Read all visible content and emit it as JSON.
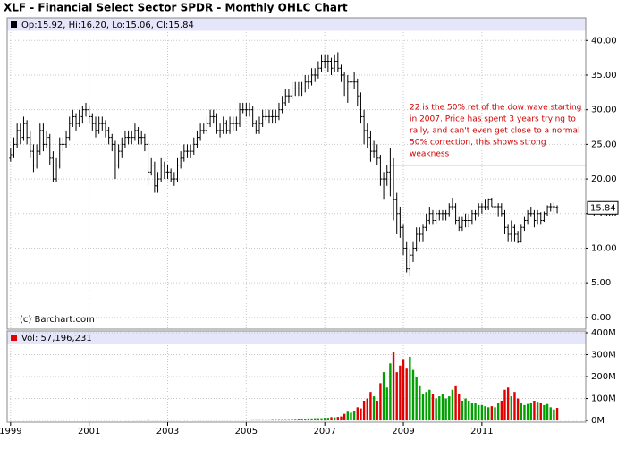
{
  "chart_data": [
    {
      "type": "ohlc",
      "title": "XLF - Financial Select Sector SPDR - Monthly OHLC Chart",
      "legend": "Op:15.92, Hi:16.20, Lo:15.06, Cl:15.84",
      "credit": "(c) Barchart.com",
      "last_label": "15.84",
      "color": "#000000",
      "grid": true,
      "ylim": [
        -1.7,
        41.2
      ],
      "yticks": [
        {
          "value": 0,
          "label": "0.00"
        },
        {
          "value": 5,
          "label": "5.00"
        },
        {
          "value": 10,
          "label": "10.00"
        },
        {
          "value": 15,
          "label": "15.00"
        },
        {
          "value": 20,
          "label": "20.00"
        },
        {
          "value": 25,
          "label": "25.00"
        },
        {
          "value": 30,
          "label": "30.00"
        },
        {
          "value": 35,
          "label": "35.00"
        },
        {
          "value": 40,
          "label": "40.00"
        }
      ],
      "annotation_line": {
        "value": 22,
        "color": "#d00000"
      },
      "annotation": [
        "22 is the 50% ret of the dow wave starting",
        "in 2007.  Price has spent 3 years trying to",
        "rally, and can't even get close to a normal",
        "50% correction, this shows strong",
        "weakness"
      ],
      "categories": [
        "1999",
        null,
        null,
        null,
        null,
        null,
        null,
        null,
        null,
        null,
        null,
        null,
        null,
        null,
        null,
        null,
        null,
        null,
        null,
        null,
        null,
        null,
        null,
        null,
        "2001",
        null,
        null,
        null,
        null,
        null,
        null,
        null,
        null,
        null,
        null,
        null,
        null,
        null,
        null,
        null,
        null,
        null,
        null,
        null,
        null,
        null,
        null,
        null,
        "2003",
        null,
        null,
        null,
        null,
        null,
        null,
        null,
        null,
        null,
        null,
        null,
        null,
        null,
        null,
        null,
        null,
        null,
        null,
        null,
        null,
        null,
        null,
        null,
        "2005",
        null,
        null,
        null,
        null,
        null,
        null,
        null,
        null,
        null,
        null,
        null,
        null,
        null,
        null,
        null,
        null,
        null,
        null,
        null,
        null,
        null,
        null,
        null,
        "2007",
        null,
        null,
        null,
        null,
        null,
        null,
        null,
        null,
        null,
        null,
        null,
        null,
        null,
        null,
        null,
        null,
        null,
        null,
        null,
        null,
        null,
        null,
        null,
        "2009",
        null,
        null,
        null,
        null,
        null,
        null,
        null,
        null,
        null,
        null,
        null,
        null,
        null,
        null,
        null,
        null,
        null,
        null,
        null,
        null,
        null,
        null,
        null,
        "2011",
        null,
        null,
        null,
        null,
        null,
        null,
        null,
        null,
        null,
        null,
        null,
        null,
        null,
        null,
        null,
        null,
        null,
        null,
        null,
        null,
        null,
        null,
        null
      ],
      "ohlc": [
        [
          23,
          24.5,
          22.5,
          23.5
        ],
        [
          23.5,
          26,
          23,
          25
        ],
        [
          25,
          28,
          24.5,
          27
        ],
        [
          27,
          28,
          25,
          26
        ],
        [
          26,
          29,
          25.5,
          28
        ],
        [
          28,
          28.5,
          25,
          26
        ],
        [
          26,
          27,
          23,
          24
        ],
        [
          24,
          25,
          21,
          22
        ],
        [
          22,
          25,
          21.5,
          24
        ],
        [
          24,
          28,
          23.5,
          27
        ],
        [
          27,
          28,
          24,
          25
        ],
        [
          25,
          27,
          24.5,
          26
        ],
        [
          26,
          26.5,
          22,
          23
        ],
        [
          23,
          24,
          19.5,
          20
        ],
        [
          20,
          23,
          19.5,
          22
        ],
        [
          22,
          26,
          21.5,
          25
        ],
        [
          25,
          26,
          24,
          25
        ],
        [
          25,
          27,
          24.5,
          26
        ],
        [
          26,
          29,
          25.5,
          28
        ],
        [
          28,
          30,
          27.5,
          29
        ],
        [
          29,
          29.5,
          27,
          28
        ],
        [
          28,
          30,
          27.5,
          29
        ],
        [
          29,
          30.5,
          28,
          30
        ],
        [
          30,
          31,
          29,
          30
        ],
        [
          30,
          30.5,
          28,
          29
        ],
        [
          29,
          29.5,
          27,
          28
        ],
        [
          28,
          29,
          26,
          27
        ],
        [
          27,
          29,
          26.5,
          28
        ],
        [
          28,
          29,
          27,
          28
        ],
        [
          28,
          28.5,
          26,
          27
        ],
        [
          27,
          27.5,
          25,
          26
        ],
        [
          26,
          26.5,
          24,
          25
        ],
        [
          25,
          25.5,
          20,
          22
        ],
        [
          22,
          25,
          21.5,
          24
        ],
        [
          24,
          26,
          23,
          25
        ],
        [
          25,
          27,
          24.5,
          26
        ],
        [
          26,
          27,
          25,
          26
        ],
        [
          26,
          27,
          25,
          26
        ],
        [
          26,
          28,
          25.5,
          27
        ],
        [
          27,
          27.5,
          25,
          26
        ],
        [
          26,
          27,
          25,
          26
        ],
        [
          26,
          26.5,
          24,
          25
        ],
        [
          25,
          25.5,
          19,
          21
        ],
        [
          21,
          23,
          20.5,
          22
        ],
        [
          22,
          22.5,
          18,
          19
        ],
        [
          19,
          21,
          18,
          20
        ],
        [
          20,
          23,
          19.5,
          22
        ],
        [
          22,
          22.5,
          20,
          21
        ],
        [
          21,
          22,
          20,
          21
        ],
        [
          21,
          21.5,
          19.5,
          20
        ],
        [
          20,
          21,
          19,
          20
        ],
        [
          20,
          23,
          19.5,
          22
        ],
        [
          22,
          24,
          21.5,
          23
        ],
        [
          23,
          25,
          22.5,
          24
        ],
        [
          24,
          25,
          23,
          24
        ],
        [
          24,
          25,
          23,
          24
        ],
        [
          24,
          26,
          23.5,
          25
        ],
        [
          25,
          27,
          24.5,
          26
        ],
        [
          26,
          28,
          25.5,
          27
        ],
        [
          27,
          28,
          26.5,
          27
        ],
        [
          27,
          29,
          26.5,
          28
        ],
        [
          28,
          30,
          27.5,
          29
        ],
        [
          29,
          30,
          28,
          29
        ],
        [
          29,
          29.5,
          26.5,
          27
        ],
        [
          27,
          28,
          26,
          27
        ],
        [
          27,
          29,
          26.5,
          28
        ],
        [
          28,
          28.5,
          26.5,
          27
        ],
        [
          27,
          29,
          26.5,
          28
        ],
        [
          28,
          29,
          27,
          28
        ],
        [
          28,
          29,
          27,
          28
        ],
        [
          28,
          31,
          27.5,
          30
        ],
        [
          30,
          31,
          29.5,
          30
        ],
        [
          30,
          31,
          29,
          30
        ],
        [
          30,
          31,
          29,
          30
        ],
        [
          30,
          30.5,
          27.5,
          28
        ],
        [
          28,
          28.5,
          26.5,
          27
        ],
        [
          27,
          29,
          26.5,
          28
        ],
        [
          28,
          30,
          27.5,
          29
        ],
        [
          29,
          30,
          28.5,
          29
        ],
        [
          29,
          30,
          28,
          29
        ],
        [
          29,
          30,
          28,
          29
        ],
        [
          29,
          30,
          28,
          29
        ],
        [
          29,
          31,
          28.5,
          30
        ],
        [
          30,
          32,
          29.5,
          31
        ],
        [
          31,
          33,
          30.5,
          32
        ],
        [
          32,
          33,
          31,
          32
        ],
        [
          32,
          34,
          31.5,
          33
        ],
        [
          33,
          34,
          32,
          33
        ],
        [
          33,
          34,
          32,
          33
        ],
        [
          33,
          34,
          32,
          33
        ],
        [
          33,
          35,
          32.5,
          34
        ],
        [
          34,
          35,
          33,
          34
        ],
        [
          34,
          36,
          33.5,
          35
        ],
        [
          35,
          36,
          34,
          35
        ],
        [
          35,
          37,
          34.5,
          36
        ],
        [
          36,
          38,
          35.5,
          37
        ],
        [
          37,
          38,
          36,
          37
        ],
        [
          37,
          38,
          35.5,
          37
        ],
        [
          37,
          37.5,
          35,
          36
        ],
        [
          36,
          38,
          35.5,
          37
        ],
        [
          37,
          38.3,
          35.5,
          36
        ],
        [
          36,
          36.5,
          34,
          35
        ],
        [
          35,
          35.5,
          32,
          33
        ],
        [
          33,
          35,
          31,
          34
        ],
        [
          34,
          35,
          33,
          34
        ],
        [
          34,
          35.5,
          33,
          34
        ],
        [
          34,
          34.5,
          30.5,
          32
        ],
        [
          32,
          32.5,
          28,
          29
        ],
        [
          29,
          30,
          25,
          27
        ],
        [
          27,
          28,
          24.5,
          26
        ],
        [
          26,
          27,
          22.5,
          24
        ],
        [
          24,
          25.5,
          23,
          24
        ],
        [
          24,
          25,
          22,
          23
        ],
        [
          23,
          23.5,
          19,
          20
        ],
        [
          20,
          21,
          17,
          20
        ],
        [
          20,
          22,
          19,
          21
        ],
        [
          21,
          24.5,
          17.5,
          22
        ],
        [
          22,
          23,
          14,
          17
        ],
        [
          17,
          18,
          12,
          15
        ],
        [
          15,
          16,
          11.5,
          13
        ],
        [
          13,
          13.5,
          9,
          10
        ],
        [
          10,
          11,
          6.5,
          7
        ],
        [
          7,
          10,
          6,
          9
        ],
        [
          9,
          11,
          8,
          10
        ],
        [
          10,
          13,
          9.5,
          12
        ],
        [
          12,
          13,
          11,
          12
        ],
        [
          12,
          13.5,
          11,
          13
        ],
        [
          13,
          15,
          12.5,
          14
        ],
        [
          14,
          16,
          13.5,
          15
        ],
        [
          15,
          15.5,
          13.5,
          14
        ],
        [
          14,
          15.5,
          13.5,
          15
        ],
        [
          15,
          15.5,
          14,
          15
        ],
        [
          15,
          15.5,
          14,
          15
        ],
        [
          15,
          15.5,
          14,
          15
        ],
        [
          15,
          16.5,
          14.5,
          16
        ],
        [
          16,
          17.3,
          15.5,
          16
        ],
        [
          16,
          16.5,
          13.5,
          14
        ],
        [
          14,
          14.5,
          12.5,
          13
        ],
        [
          13,
          14.5,
          12.5,
          14
        ],
        [
          14,
          15,
          13,
          14
        ],
        [
          14,
          15,
          13,
          14
        ],
        [
          14,
          15.5,
          13.5,
          15
        ],
        [
          15,
          15.5,
          14,
          15
        ],
        [
          15,
          16.5,
          14.5,
          16
        ],
        [
          16,
          16.5,
          15,
          16
        ],
        [
          16,
          17,
          15.5,
          16
        ],
        [
          16,
          17.2,
          15.5,
          17
        ],
        [
          17,
          17.3,
          16,
          16
        ],
        [
          16,
          16.5,
          15,
          16
        ],
        [
          16,
          16.5,
          14.5,
          16
        ],
        [
          16,
          16.5,
          14.5,
          15
        ],
        [
          15,
          15.5,
          12,
          13
        ],
        [
          13,
          13.5,
          11,
          12
        ],
        [
          12,
          14,
          11,
          13
        ],
        [
          13,
          13.5,
          11,
          12
        ],
        [
          12,
          12.5,
          10.7,
          11
        ],
        [
          11,
          13.5,
          10.8,
          13
        ],
        [
          13,
          14.5,
          12.5,
          14
        ],
        [
          14,
          15.5,
          13.5,
          15
        ],
        [
          15,
          16,
          14.5,
          15
        ],
        [
          15,
          15.5,
          13,
          14
        ],
        [
          14,
          15.5,
          13.5,
          15
        ],
        [
          15,
          15.2,
          13.5,
          14
        ],
        [
          14,
          15.3,
          13.8,
          15
        ],
        [
          15,
          16.2,
          14.6,
          16
        ],
        [
          16,
          16.5,
          15.3,
          16
        ],
        [
          16,
          16.6,
          15.2,
          16
        ],
        [
          15.92,
          16.2,
          15.06,
          15.84
        ]
      ]
    },
    {
      "type": "bar",
      "legend": "Vol: 57,196,231",
      "up_color": "#00a000",
      "down_color": "#e00000",
      "legend_color": "#e00000",
      "grid": true,
      "ylim": [
        -8,
        400
      ],
      "yticks": [
        {
          "value": 0,
          "label": "0M"
        },
        {
          "value": 100,
          "label": "100M"
        },
        {
          "value": 200,
          "label": "200M"
        },
        {
          "value": 300,
          "label": "300M"
        },
        {
          "value": 400,
          "label": "400M"
        }
      ],
      "values": [
        0,
        0,
        0,
        0,
        0,
        0,
        0,
        0,
        0,
        0,
        0,
        0,
        0,
        0,
        0,
        0,
        0,
        0,
        0,
        0,
        0,
        0,
        0,
        0,
        0,
        0,
        0,
        0,
        0,
        0,
        0,
        0,
        0,
        0,
        0,
        0,
        2,
        2,
        3,
        2,
        2,
        3,
        5,
        4,
        4,
        4,
        3,
        3,
        3,
        3,
        4,
        3,
        3,
        3,
        3,
        3,
        3,
        3,
        3,
        3,
        3,
        3,
        4,
        4,
        4,
        3,
        4,
        4,
        3,
        4,
        4,
        4,
        4,
        4,
        5,
        5,
        5,
        5,
        5,
        5,
        6,
        6,
        6,
        6,
        6,
        6,
        7,
        7,
        8,
        8,
        8,
        9,
        9,
        10,
        10,
        10,
        12,
        12,
        15,
        14,
        16,
        18,
        30,
        40,
        35,
        45,
        60,
        55,
        90,
        100,
        130,
        110,
        90,
        170,
        220,
        150,
        260,
        310,
        220,
        250,
        280,
        240,
        290,
        230,
        200,
        160,
        120,
        130,
        140,
        120,
        100,
        110,
        120,
        100,
        110,
        140,
        160,
        120,
        90,
        100,
        90,
        80,
        80,
        70,
        70,
        65,
        60,
        65,
        60,
        80,
        90,
        140,
        150,
        110,
        130,
        100,
        80,
        70,
        75,
        80,
        90,
        85,
        80,
        70,
        75,
        60,
        50,
        57.196231
      ]
    }
  ]
}
